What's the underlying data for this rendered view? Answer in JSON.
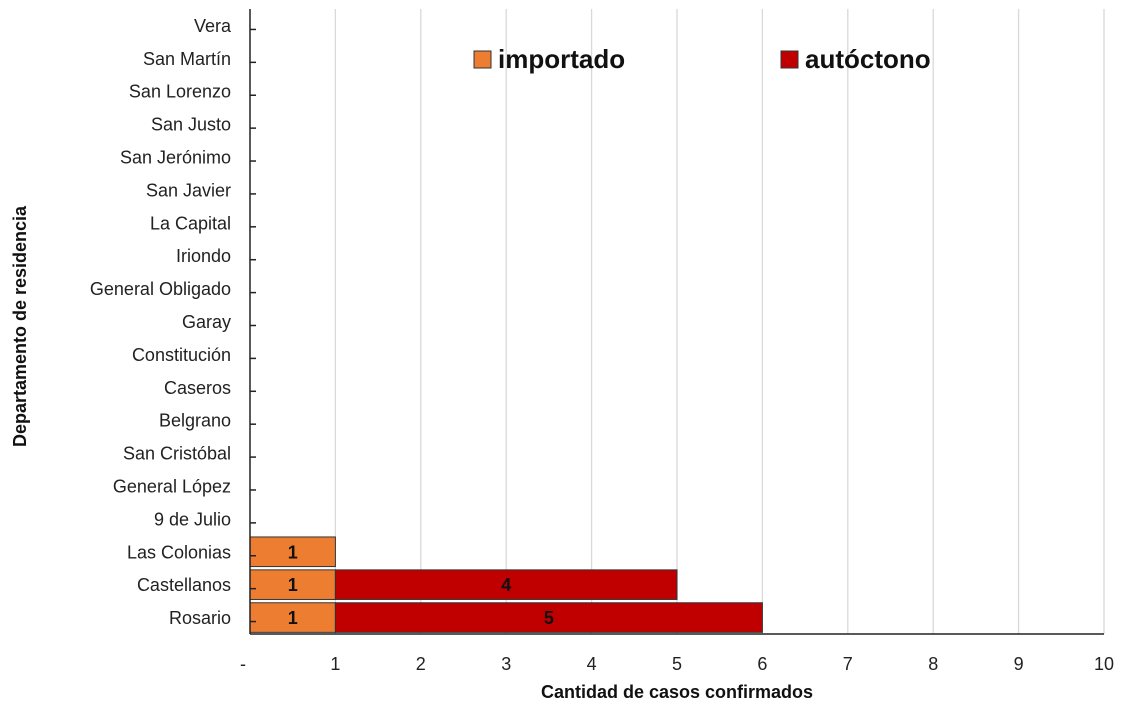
{
  "chart_data": {
    "type": "bar",
    "orientation": "horizontal",
    "stacked": true,
    "categories": [
      "Rosario",
      "Castellanos",
      "Las Colonias",
      "9 de Julio",
      "General López",
      "San Cristóbal",
      "Belgrano",
      "Caseros",
      "Constitución",
      "Garay",
      "General Obligado",
      "Iriondo",
      "La Capital",
      "San Javier",
      "San Jerónimo",
      "San Justo",
      "San Lorenzo",
      "San Martín",
      "Vera"
    ],
    "series": [
      {
        "name": "importado",
        "color": "#ED7D31",
        "values": [
          1,
          1,
          1,
          0,
          0,
          0,
          0,
          0,
          0,
          0,
          0,
          0,
          0,
          0,
          0,
          0,
          0,
          0,
          0
        ]
      },
      {
        "name": "autóctono",
        "color": "#C00000",
        "values": [
          5,
          4,
          0,
          0,
          0,
          0,
          0,
          0,
          0,
          0,
          0,
          0,
          0,
          0,
          0,
          0,
          0,
          0,
          0
        ]
      }
    ],
    "xlabel": "Cantidad de casos confirmados",
    "ylabel": "Departamento de residencia",
    "xlim": [
      0,
      10
    ],
    "xticks": [
      "-",
      "1",
      "2",
      "3",
      "4",
      "5",
      "6",
      "7",
      "8",
      "9",
      "10"
    ],
    "grid": "vertical",
    "legend": "top"
  }
}
